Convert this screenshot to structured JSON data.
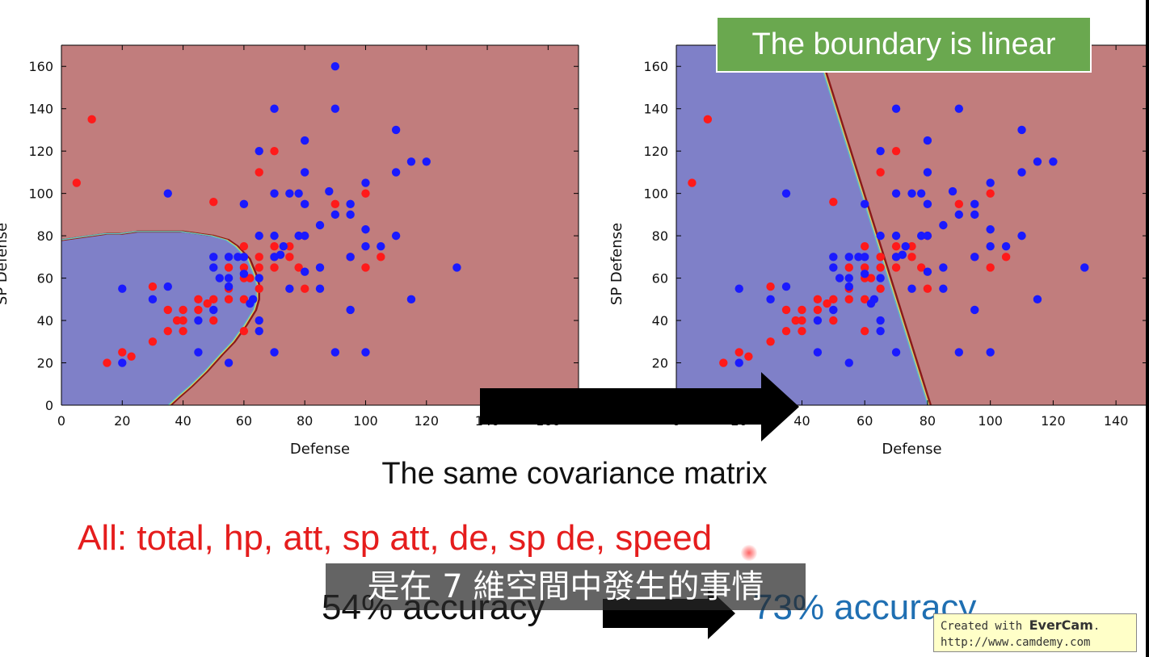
{
  "slide": {
    "banner": "The boundary is linear",
    "covariance_caption": "The same covariance matrix",
    "features": "All: total, hp, att, sp att, de, sp de, speed",
    "accuracy_left": "54% accuracy",
    "accuracy_right": "73% accuracy",
    "subtitle": "是在 7 維空間中發生的事情",
    "watermark_line1_prefix": "Created with ",
    "watermark_brand": "EverCam",
    "watermark_line1_suffix": ".",
    "watermark_line2": "http://www.camdemy.com",
    "colors": {
      "banner_bg": "#6aa84f",
      "features_text": "#e51d1d",
      "accuracy_right_text": "#1f6fb2",
      "region_class1": "#c17d7d",
      "region_class0": "#7f80c8",
      "point_class1": "#ff1a1a",
      "point_class0": "#1a1aff"
    }
  },
  "chart_data": [
    {
      "type": "scatter",
      "title": "",
      "xlabel": "Defense",
      "ylabel": "SP Defense",
      "xlim": [
        0,
        170
      ],
      "ylim": [
        0,
        170
      ],
      "xticks": [
        0,
        20,
        40,
        60,
        80,
        100,
        120,
        140,
        160
      ],
      "yticks": [
        0,
        20,
        40,
        60,
        80,
        100,
        120,
        140,
        160
      ],
      "grid": false,
      "boundary": "quadratic",
      "region_boundary": [
        [
          0,
          78
        ],
        [
          5,
          79
        ],
        [
          10,
          80
        ],
        [
          15,
          81
        ],
        [
          20,
          81
        ],
        [
          25,
          82
        ],
        [
          30,
          82
        ],
        [
          35,
          82
        ],
        [
          40,
          82
        ],
        [
          45,
          81
        ],
        [
          50,
          80
        ],
        [
          55,
          78
        ],
        [
          58,
          75
        ],
        [
          60,
          72
        ],
        [
          62,
          69
        ],
        [
          64,
          62
        ],
        [
          65,
          57
        ],
        [
          65,
          50
        ],
        [
          64,
          45
        ],
        [
          61,
          38
        ],
        [
          57,
          30
        ],
        [
          53,
          24
        ],
        [
          48,
          16
        ],
        [
          43,
          9
        ],
        [
          39,
          4
        ],
        [
          36,
          0
        ]
      ],
      "series": [
        {
          "values": [
            [
              10,
              135
            ],
            [
              5,
              105
            ],
            [
              70,
              120
            ],
            [
              65,
              110
            ],
            [
              50,
              96
            ],
            [
              100,
              100
            ],
            [
              90,
              95
            ],
            [
              80,
              80
            ],
            [
              75,
              75
            ],
            [
              70,
              75
            ],
            [
              70,
              65
            ],
            [
              70,
              70
            ],
            [
              60,
              75
            ],
            [
              65,
              70
            ],
            [
              60,
              65
            ],
            [
              65,
              65
            ],
            [
              62,
              60
            ],
            [
              60,
              60
            ],
            [
              65,
              55
            ],
            [
              60,
              50
            ],
            [
              60,
              35
            ],
            [
              55,
              50
            ],
            [
              55,
              55
            ],
            [
              55,
              65
            ],
            [
              50,
              50
            ],
            [
              50,
              40
            ],
            [
              48,
              48
            ],
            [
              45,
              45
            ],
            [
              45,
              50
            ],
            [
              40,
              45
            ],
            [
              40,
              40
            ],
            [
              40,
              35
            ],
            [
              38,
              40
            ],
            [
              35,
              35
            ],
            [
              35,
              45
            ],
            [
              30,
              30
            ],
            [
              30,
              56
            ],
            [
              15,
              20
            ],
            [
              20,
              25
            ],
            [
              23,
              23
            ],
            [
              80,
              55
            ],
            [
              95,
              70
            ],
            [
              100,
              65
            ],
            [
              105,
              70
            ],
            [
              75,
              70
            ],
            [
              78,
              65
            ]
          ]
        },
        {
          "values": [
            [
              90,
              160
            ],
            [
              70,
              140
            ],
            [
              90,
              140
            ],
            [
              65,
              120
            ],
            [
              80,
              125
            ],
            [
              110,
              130
            ],
            [
              80,
              110
            ],
            [
              115,
              115
            ],
            [
              120,
              115
            ],
            [
              110,
              110
            ],
            [
              100,
              105
            ],
            [
              70,
              100
            ],
            [
              78,
              100
            ],
            [
              75,
              100
            ],
            [
              80,
              95
            ],
            [
              60,
              95
            ],
            [
              35,
              100
            ],
            [
              88,
              101
            ],
            [
              90,
              90
            ],
            [
              95,
              90
            ],
            [
              95,
              95
            ],
            [
              85,
              85
            ],
            [
              100,
              83
            ],
            [
              80,
              80
            ],
            [
              78,
              80
            ],
            [
              65,
              80
            ],
            [
              70,
              80
            ],
            [
              110,
              80
            ],
            [
              100,
              75
            ],
            [
              105,
              75
            ],
            [
              73,
              75
            ],
            [
              50,
              70
            ],
            [
              55,
              70
            ],
            [
              58,
              70
            ],
            [
              60,
              70
            ],
            [
              70,
              70
            ],
            [
              72,
              71
            ],
            [
              85,
              65
            ],
            [
              80,
              63
            ],
            [
              95,
              70
            ],
            [
              130,
              65
            ],
            [
              50,
              65
            ],
            [
              52,
              60
            ],
            [
              55,
              60
            ],
            [
              55,
              56
            ],
            [
              60,
              62
            ],
            [
              65,
              60
            ],
            [
              85,
              55
            ],
            [
              75,
              55
            ],
            [
              115,
              50
            ],
            [
              62,
              48
            ],
            [
              63,
              50
            ],
            [
              65,
              40
            ],
            [
              65,
              35
            ],
            [
              45,
              40
            ],
            [
              50,
              45
            ],
            [
              95,
              45
            ],
            [
              70,
              25
            ],
            [
              90,
              25
            ],
            [
              100,
              25
            ],
            [
              55,
              20
            ],
            [
              45,
              25
            ],
            [
              30,
              50
            ],
            [
              35,
              56
            ],
            [
              20,
              55
            ],
            [
              20,
              20
            ]
          ]
        }
      ]
    },
    {
      "type": "scatter",
      "title": "",
      "xlabel": "Defense",
      "ylabel": "SP Defense",
      "xlim": [
        0,
        150
      ],
      "ylim": [
        0,
        170
      ],
      "xticks": [
        0,
        20,
        40,
        60,
        80,
        100,
        120,
        140
      ],
      "yticks": [
        0,
        20,
        40,
        60,
        80,
        100,
        120,
        140,
        160
      ],
      "grid": false,
      "boundary": "linear",
      "region_boundary": [
        [
          45,
          170
        ],
        [
          81,
          0
        ]
      ],
      "series": [
        {
          "values": [
            [
              10,
              135
            ],
            [
              5,
              105
            ],
            [
              70,
              120
            ],
            [
              65,
              110
            ],
            [
              50,
              96
            ],
            [
              100,
              100
            ],
            [
              90,
              95
            ],
            [
              80,
              80
            ],
            [
              75,
              75
            ],
            [
              70,
              75
            ],
            [
              70,
              65
            ],
            [
              70,
              70
            ],
            [
              60,
              75
            ],
            [
              65,
              70
            ],
            [
              60,
              65
            ],
            [
              65,
              65
            ],
            [
              62,
              60
            ],
            [
              60,
              60
            ],
            [
              65,
              55
            ],
            [
              60,
              50
            ],
            [
              60,
              35
            ],
            [
              55,
              50
            ],
            [
              55,
              55
            ],
            [
              55,
              65
            ],
            [
              50,
              50
            ],
            [
              50,
              40
            ],
            [
              48,
              48
            ],
            [
              45,
              45
            ],
            [
              45,
              50
            ],
            [
              40,
              45
            ],
            [
              40,
              40
            ],
            [
              40,
              35
            ],
            [
              38,
              40
            ],
            [
              35,
              35
            ],
            [
              35,
              45
            ],
            [
              30,
              30
            ],
            [
              30,
              56
            ],
            [
              15,
              20
            ],
            [
              20,
              25
            ],
            [
              23,
              23
            ],
            [
              80,
              55
            ],
            [
              95,
              70
            ],
            [
              100,
              65
            ],
            [
              105,
              70
            ],
            [
              75,
              70
            ],
            [
              78,
              65
            ]
          ]
        },
        {
          "values": [
            [
              70,
              140
            ],
            [
              90,
              140
            ],
            [
              65,
              120
            ],
            [
              80,
              125
            ],
            [
              110,
              130
            ],
            [
              80,
              110
            ],
            [
              115,
              115
            ],
            [
              120,
              115
            ],
            [
              110,
              110
            ],
            [
              100,
              105
            ],
            [
              70,
              100
            ],
            [
              78,
              100
            ],
            [
              75,
              100
            ],
            [
              80,
              95
            ],
            [
              60,
              95
            ],
            [
              35,
              100
            ],
            [
              88,
              101
            ],
            [
              90,
              90
            ],
            [
              95,
              90
            ],
            [
              95,
              95
            ],
            [
              85,
              85
            ],
            [
              100,
              83
            ],
            [
              80,
              80
            ],
            [
              78,
              80
            ],
            [
              65,
              80
            ],
            [
              70,
              80
            ],
            [
              110,
              80
            ],
            [
              100,
              75
            ],
            [
              105,
              75
            ],
            [
              73,
              75
            ],
            [
              50,
              70
            ],
            [
              55,
              70
            ],
            [
              58,
              70
            ],
            [
              60,
              70
            ],
            [
              70,
              70
            ],
            [
              72,
              71
            ],
            [
              85,
              65
            ],
            [
              80,
              63
            ],
            [
              95,
              70
            ],
            [
              130,
              65
            ],
            [
              50,
              65
            ],
            [
              52,
              60
            ],
            [
              55,
              60
            ],
            [
              55,
              56
            ],
            [
              60,
              62
            ],
            [
              65,
              60
            ],
            [
              85,
              55
            ],
            [
              75,
              55
            ],
            [
              115,
              50
            ],
            [
              62,
              48
            ],
            [
              63,
              50
            ],
            [
              65,
              40
            ],
            [
              65,
              35
            ],
            [
              45,
              40
            ],
            [
              50,
              45
            ],
            [
              95,
              45
            ],
            [
              70,
              25
            ],
            [
              90,
              25
            ],
            [
              100,
              25
            ],
            [
              55,
              20
            ],
            [
              45,
              25
            ],
            [
              30,
              50
            ],
            [
              35,
              56
            ],
            [
              20,
              55
            ],
            [
              20,
              20
            ]
          ]
        }
      ]
    }
  ]
}
